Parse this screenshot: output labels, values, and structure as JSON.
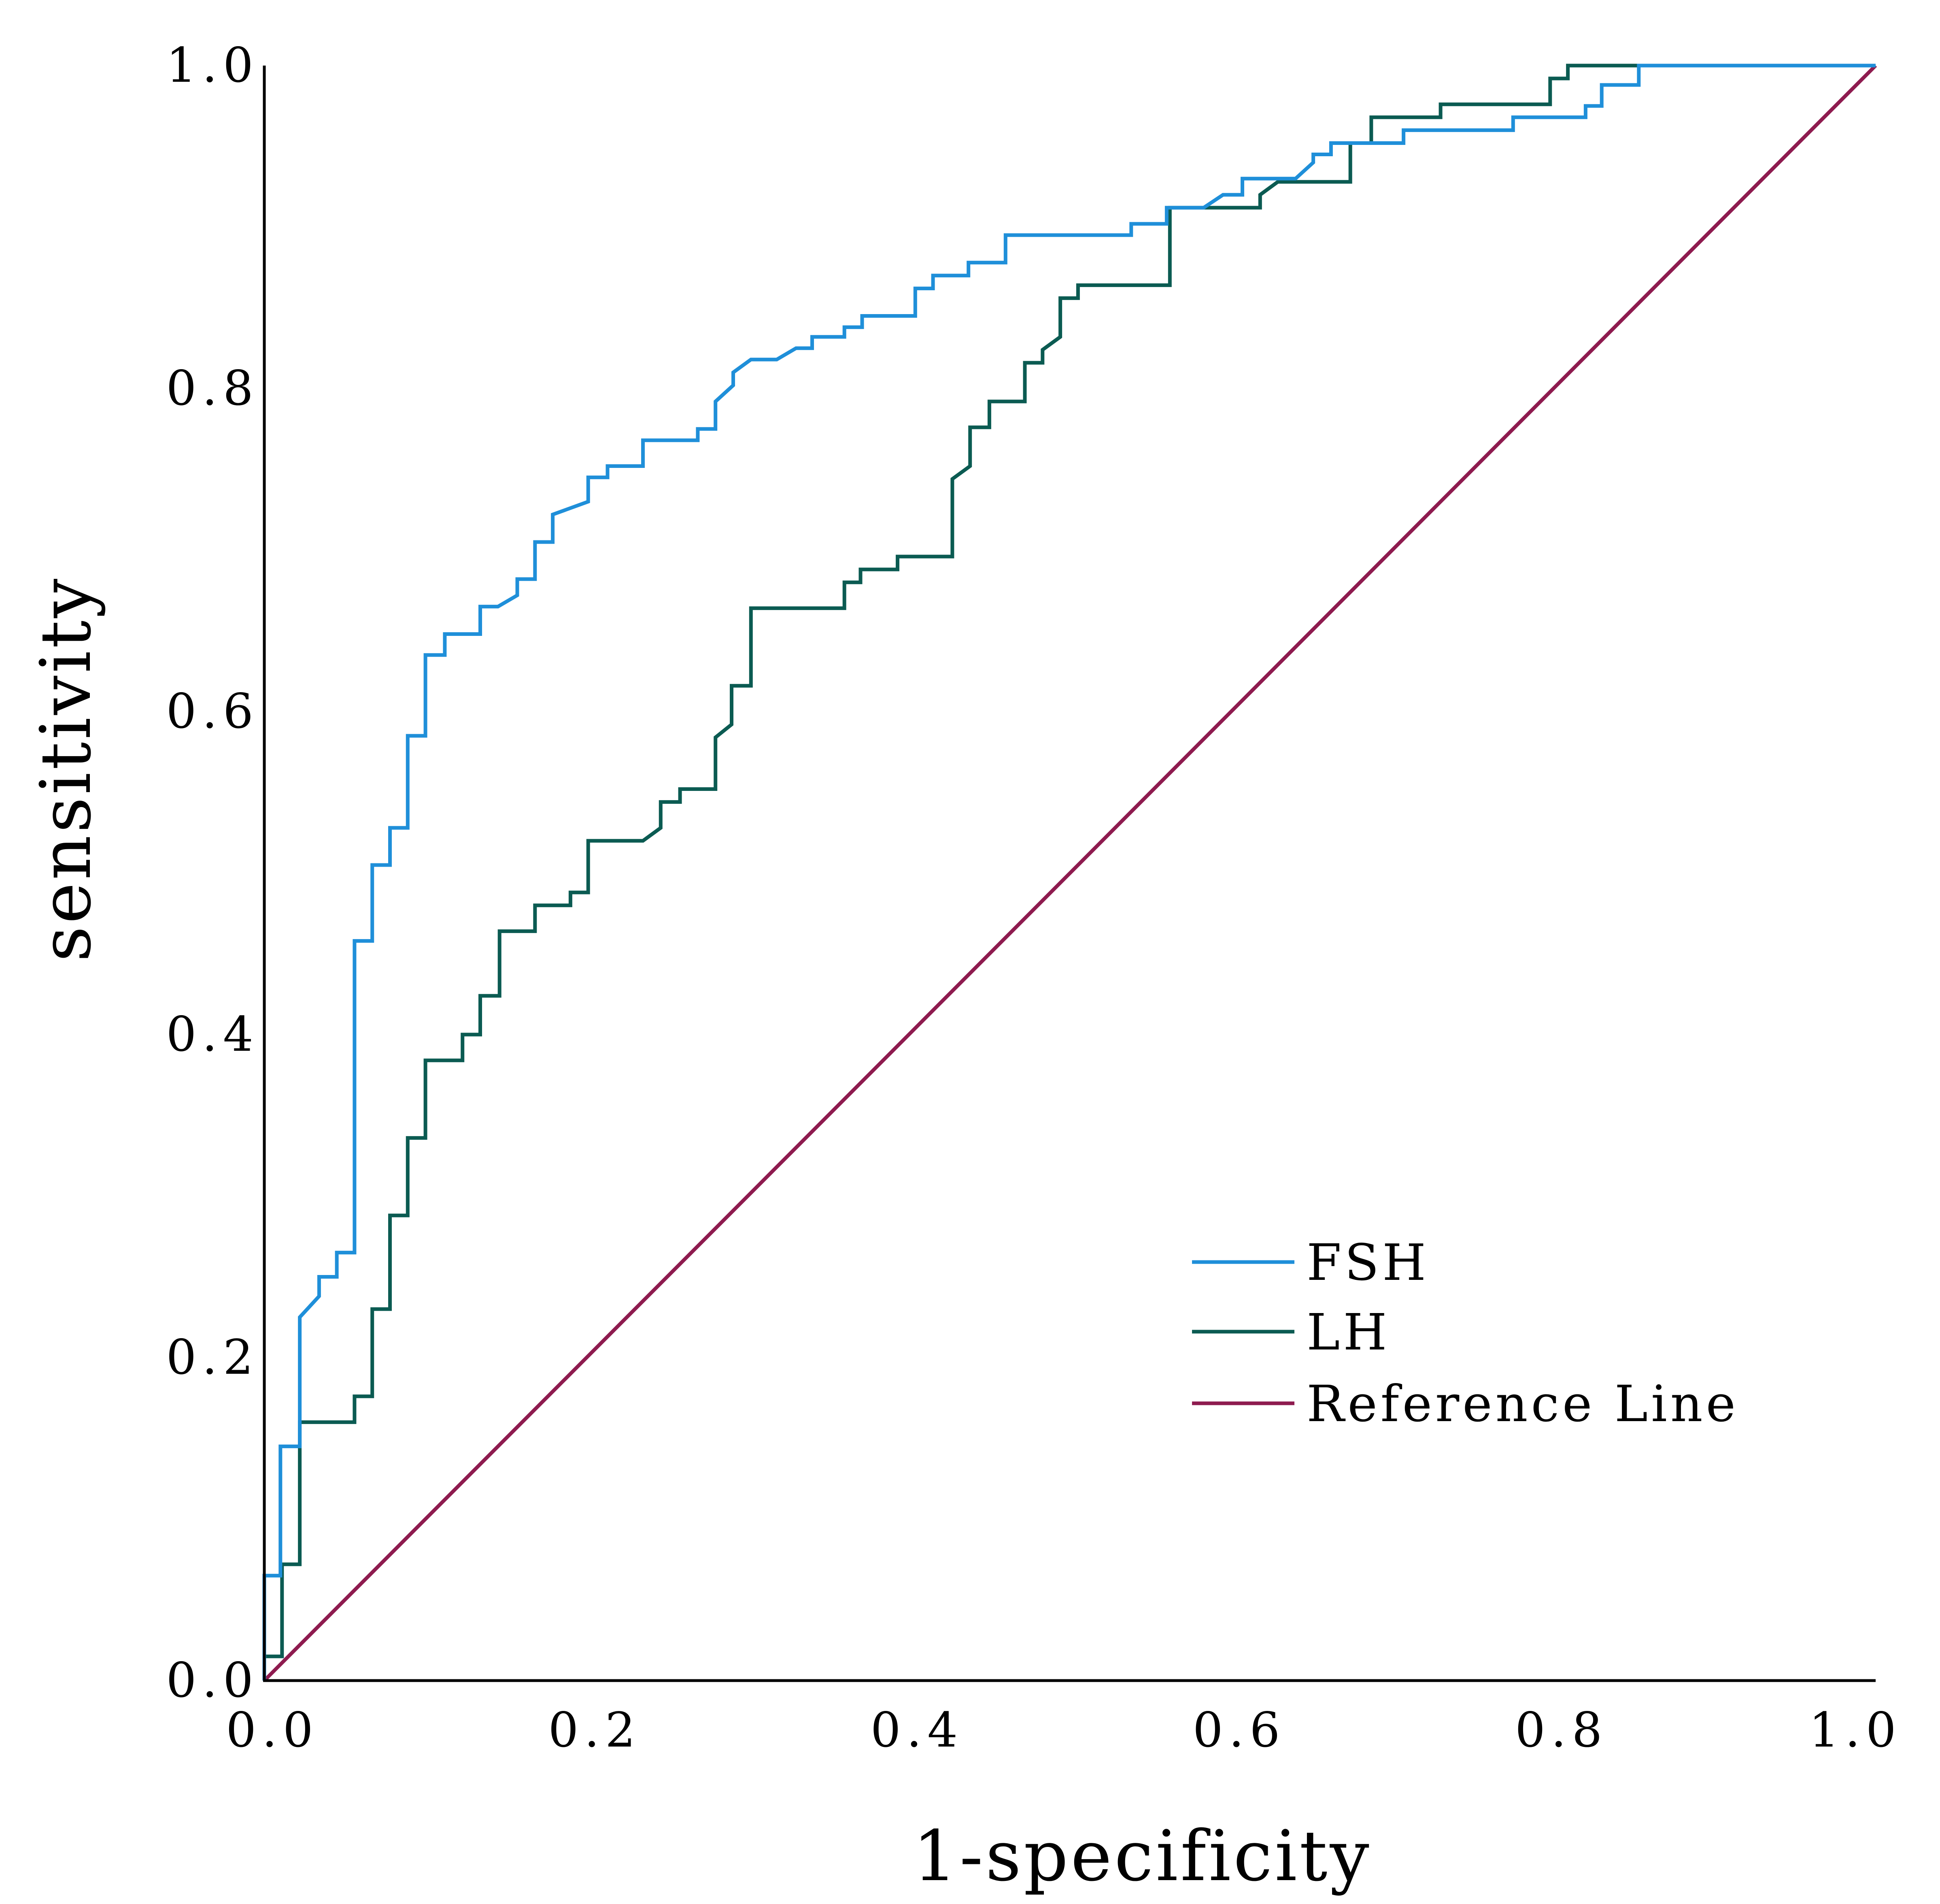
{
  "chart_data": {
    "type": "line",
    "title": "",
    "xlabel": "1-specificity",
    "ylabel": "sensitivity",
    "xlim": [
      0.0,
      1.0
    ],
    "ylim": [
      0.0,
      1.0
    ],
    "xticks": [
      "0.0",
      "0.2",
      "0.4",
      "0.6",
      "0.8",
      "1.0"
    ],
    "yticks": [
      "0.0",
      "0.2",
      "0.4",
      "0.6",
      "0.8",
      "1.0"
    ],
    "grid": false,
    "legend_position": "lower-right",
    "series": [
      {
        "name": "FSH",
        "color": "#1f8fd9",
        "points": [
          [
            0.0,
            0.0
          ],
          [
            0.0,
            0.065
          ],
          [
            0.01,
            0.065
          ],
          [
            0.01,
            0.145
          ],
          [
            0.022,
            0.145
          ],
          [
            0.022,
            0.225
          ],
          [
            0.034,
            0.238
          ],
          [
            0.034,
            0.25
          ],
          [
            0.045,
            0.25
          ],
          [
            0.045,
            0.265
          ],
          [
            0.056,
            0.265
          ],
          [
            0.056,
            0.458
          ],
          [
            0.067,
            0.458
          ],
          [
            0.067,
            0.505
          ],
          [
            0.078,
            0.505
          ],
          [
            0.078,
            0.528
          ],
          [
            0.089,
            0.528
          ],
          [
            0.089,
            0.585
          ],
          [
            0.1,
            0.585
          ],
          [
            0.1,
            0.635
          ],
          [
            0.112,
            0.635
          ],
          [
            0.112,
            0.648
          ],
          [
            0.134,
            0.648
          ],
          [
            0.134,
            0.665
          ],
          [
            0.145,
            0.665
          ],
          [
            0.157,
            0.672
          ],
          [
            0.157,
            0.682
          ],
          [
            0.168,
            0.682
          ],
          [
            0.168,
            0.705
          ],
          [
            0.179,
            0.705
          ],
          [
            0.179,
            0.722
          ],
          [
            0.201,
            0.73
          ],
          [
            0.201,
            0.745
          ],
          [
            0.213,
            0.745
          ],
          [
            0.213,
            0.752
          ],
          [
            0.235,
            0.752
          ],
          [
            0.235,
            0.768
          ],
          [
            0.269,
            0.768
          ],
          [
            0.269,
            0.775
          ],
          [
            0.28,
            0.775
          ],
          [
            0.28,
            0.792
          ],
          [
            0.291,
            0.802
          ],
          [
            0.291,
            0.81
          ],
          [
            0.302,
            0.818
          ],
          [
            0.318,
            0.818
          ],
          [
            0.33,
            0.825
          ],
          [
            0.34,
            0.825
          ],
          [
            0.34,
            0.832
          ],
          [
            0.36,
            0.832
          ],
          [
            0.36,
            0.838
          ],
          [
            0.371,
            0.838
          ],
          [
            0.371,
            0.845
          ],
          [
            0.404,
            0.845
          ],
          [
            0.404,
            0.862
          ],
          [
            0.415,
            0.862
          ],
          [
            0.415,
            0.87
          ],
          [
            0.437,
            0.87
          ],
          [
            0.437,
            0.878
          ],
          [
            0.46,
            0.878
          ],
          [
            0.46,
            0.895
          ],
          [
            0.538,
            0.895
          ],
          [
            0.538,
            0.902
          ],
          [
            0.56,
            0.902
          ],
          [
            0.56,
            0.912
          ],
          [
            0.583,
            0.912
          ],
          [
            0.595,
            0.92
          ],
          [
            0.607,
            0.92
          ],
          [
            0.607,
            0.93
          ],
          [
            0.64,
            0.93
          ],
          [
            0.651,
            0.94
          ],
          [
            0.651,
            0.945
          ],
          [
            0.662,
            0.945
          ],
          [
            0.662,
            0.952
          ],
          [
            0.707,
            0.952
          ],
          [
            0.707,
            0.96
          ],
          [
            0.775,
            0.96
          ],
          [
            0.775,
            0.968
          ],
          [
            0.82,
            0.968
          ],
          [
            0.82,
            0.975
          ],
          [
            0.83,
            0.975
          ],
          [
            0.83,
            0.988
          ],
          [
            0.853,
            0.988
          ],
          [
            0.853,
            1.0
          ],
          [
            1.0,
            1.0
          ]
        ]
      },
      {
        "name": "LH",
        "color": "#0b5b52",
        "points": [
          [
            0.0,
            0.0
          ],
          [
            0.0,
            0.015
          ],
          [
            0.011,
            0.015
          ],
          [
            0.011,
            0.072
          ],
          [
            0.022,
            0.072
          ],
          [
            0.022,
            0.16
          ],
          [
            0.056,
            0.16
          ],
          [
            0.056,
            0.176
          ],
          [
            0.067,
            0.176
          ],
          [
            0.067,
            0.23
          ],
          [
            0.078,
            0.23
          ],
          [
            0.078,
            0.288
          ],
          [
            0.089,
            0.288
          ],
          [
            0.089,
            0.336
          ],
          [
            0.1,
            0.336
          ],
          [
            0.1,
            0.384
          ],
          [
            0.123,
            0.384
          ],
          [
            0.123,
            0.4
          ],
          [
            0.134,
            0.4
          ],
          [
            0.134,
            0.424
          ],
          [
            0.146,
            0.424
          ],
          [
            0.146,
            0.464
          ],
          [
            0.168,
            0.464
          ],
          [
            0.168,
            0.48
          ],
          [
            0.19,
            0.48
          ],
          [
            0.19,
            0.488
          ],
          [
            0.201,
            0.488
          ],
          [
            0.201,
            0.52
          ],
          [
            0.235,
            0.52
          ],
          [
            0.246,
            0.528
          ],
          [
            0.246,
            0.544
          ],
          [
            0.258,
            0.544
          ],
          [
            0.258,
            0.552
          ],
          [
            0.28,
            0.552
          ],
          [
            0.28,
            0.584
          ],
          [
            0.29,
            0.592
          ],
          [
            0.29,
            0.616
          ],
          [
            0.302,
            0.616
          ],
          [
            0.302,
            0.664
          ],
          [
            0.36,
            0.664
          ],
          [
            0.36,
            0.68
          ],
          [
            0.37,
            0.68
          ],
          [
            0.37,
            0.688
          ],
          [
            0.393,
            0.688
          ],
          [
            0.393,
            0.696
          ],
          [
            0.427,
            0.696
          ],
          [
            0.427,
            0.744
          ],
          [
            0.438,
            0.752
          ],
          [
            0.438,
            0.776
          ],
          [
            0.45,
            0.776
          ],
          [
            0.45,
            0.792
          ],
          [
            0.472,
            0.792
          ],
          [
            0.472,
            0.816
          ],
          [
            0.483,
            0.816
          ],
          [
            0.483,
            0.824
          ],
          [
            0.494,
            0.832
          ],
          [
            0.494,
            0.856
          ],
          [
            0.505,
            0.856
          ],
          [
            0.505,
            0.864
          ],
          [
            0.562,
            0.864
          ],
          [
            0.562,
            0.912
          ],
          [
            0.618,
            0.912
          ],
          [
            0.618,
            0.92
          ],
          [
            0.629,
            0.928
          ],
          [
            0.674,
            0.928
          ],
          [
            0.674,
            0.952
          ],
          [
            0.687,
            0.952
          ],
          [
            0.687,
            0.968
          ],
          [
            0.73,
            0.968
          ],
          [
            0.73,
            0.976
          ],
          [
            0.798,
            0.976
          ],
          [
            0.798,
            0.992
          ],
          [
            0.809,
            0.992
          ],
          [
            0.809,
            1.0
          ],
          [
            1.0,
            1.0
          ]
        ]
      },
      {
        "name": "Reference Line",
        "color": "#8e1b4f",
        "points": [
          [
            0.0,
            0.0
          ],
          [
            1.0,
            1.0
          ]
        ]
      }
    ]
  }
}
